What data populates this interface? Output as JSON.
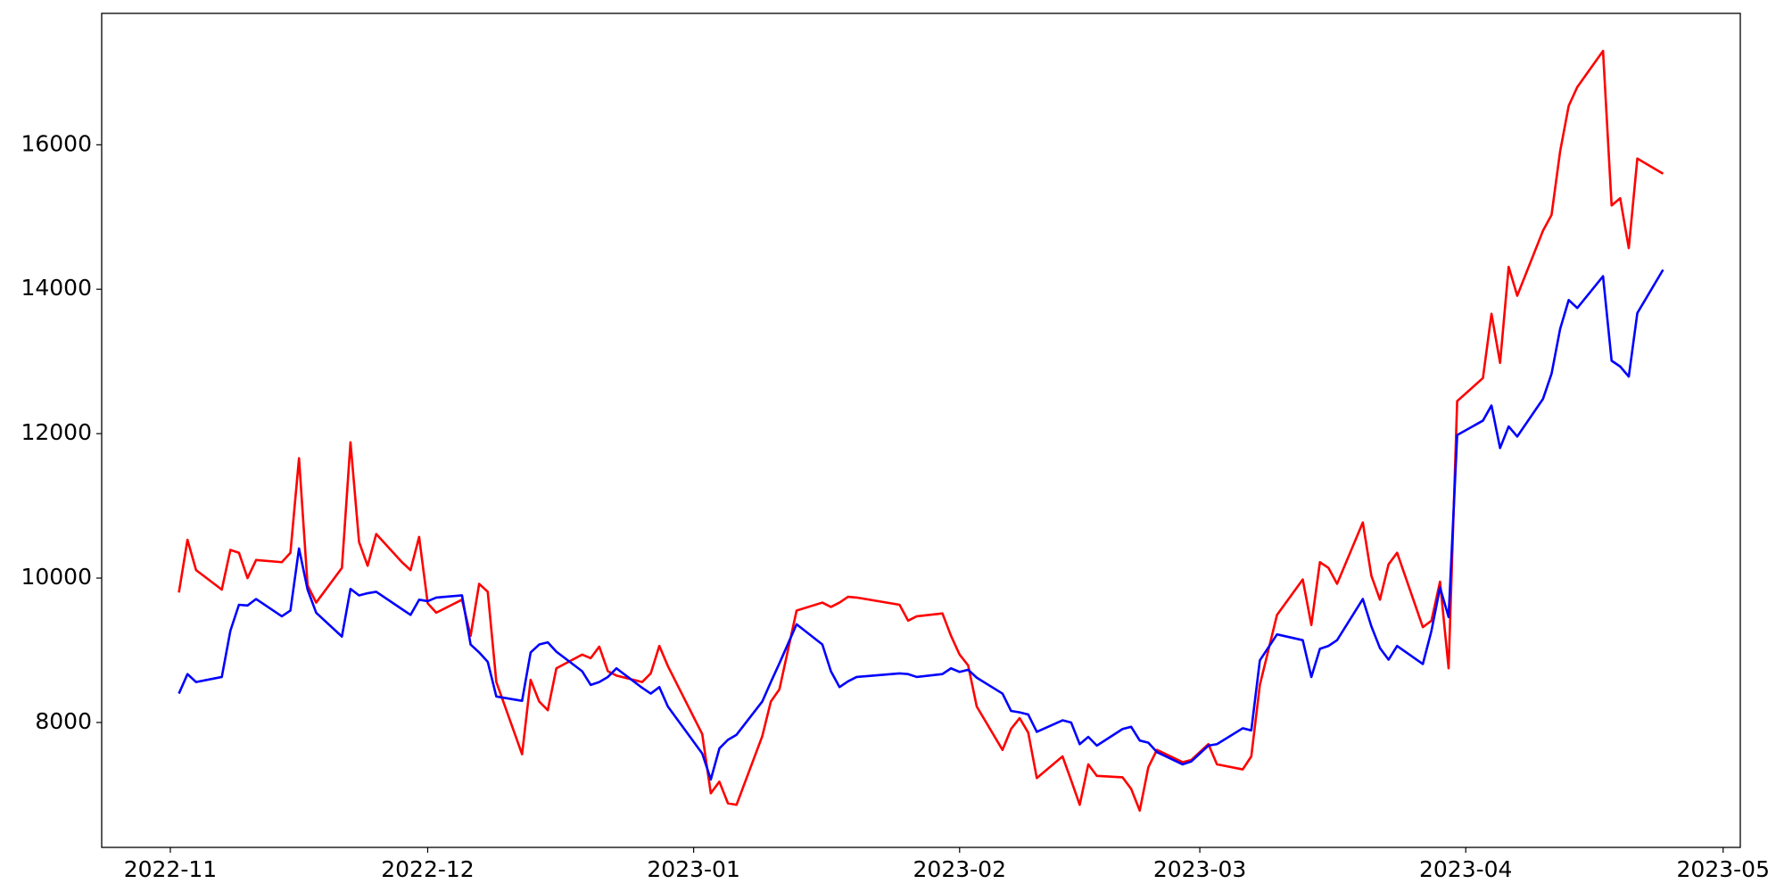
{
  "chart_data": {
    "type": "line",
    "x": [
      "2022-11-02",
      "2022-11-03",
      "2022-11-04",
      "2022-11-07",
      "2022-11-08",
      "2022-11-09",
      "2022-11-10",
      "2022-11-11",
      "2022-11-14",
      "2022-11-15",
      "2022-11-16",
      "2022-11-17",
      "2022-11-18",
      "2022-11-21",
      "2022-11-22",
      "2022-11-23",
      "2022-11-24",
      "2022-11-25",
      "2022-11-28",
      "2022-11-29",
      "2022-11-30",
      "2022-12-01",
      "2022-12-02",
      "2022-12-05",
      "2022-12-06",
      "2022-12-07",
      "2022-12-08",
      "2022-12-09",
      "2022-12-12",
      "2022-12-13",
      "2022-12-14",
      "2022-12-15",
      "2022-12-16",
      "2022-12-19",
      "2022-12-20",
      "2022-12-21",
      "2022-12-22",
      "2022-12-23",
      "2022-12-26",
      "2022-12-27",
      "2022-12-28",
      "2022-12-29",
      "2023-01-02",
      "2023-01-03",
      "2023-01-04",
      "2023-01-05",
      "2023-01-06",
      "2023-01-09",
      "2023-01-10",
      "2023-01-11",
      "2023-01-13",
      "2023-01-16",
      "2023-01-17",
      "2023-01-18",
      "2023-01-19",
      "2023-01-20",
      "2023-01-25",
      "2023-01-26",
      "2023-01-27",
      "2023-01-30",
      "2023-01-31",
      "2023-02-01",
      "2023-02-02",
      "2023-02-03",
      "2023-02-06",
      "2023-02-07",
      "2023-02-08",
      "2023-02-09",
      "2023-02-10",
      "2023-02-13",
      "2023-02-14",
      "2023-02-15",
      "2023-02-16",
      "2023-02-17",
      "2023-02-20",
      "2023-02-21",
      "2023-02-22",
      "2023-02-23",
      "2023-02-24",
      "2023-02-27",
      "2023-02-28",
      "2023-03-02",
      "2023-03-03",
      "2023-03-06",
      "2023-03-07",
      "2023-03-08",
      "2023-03-10",
      "2023-03-13",
      "2023-03-14",
      "2023-03-15",
      "2023-03-16",
      "2023-03-17",
      "2023-03-20",
      "2023-03-21",
      "2023-03-22",
      "2023-03-23",
      "2023-03-24",
      "2023-03-27",
      "2023-03-28",
      "2023-03-29",
      "2023-03-30",
      "2023-03-31",
      "2023-04-03",
      "2023-04-04",
      "2023-04-05",
      "2023-04-06",
      "2023-04-07",
      "2023-04-10",
      "2023-04-11",
      "2023-04-12",
      "2023-04-13",
      "2023-04-14",
      "2023-04-17",
      "2023-04-18",
      "2023-04-19",
      "2023-04-20",
      "2023-04-21",
      "2023-04-24"
    ],
    "series": [
      {
        "color": "#ff0000",
        "values": [
          9800,
          10530,
          10110,
          9840,
          10390,
          10350,
          10000,
          10250,
          10220,
          10350,
          11660,
          9900,
          9660,
          10140,
          11880,
          10500,
          10170,
          10610,
          10220,
          10110,
          10570,
          9650,
          9520,
          9700,
          9200,
          9920,
          9810,
          8560,
          7560,
          8590,
          8290,
          8170,
          8750,
          8940,
          8890,
          9050,
          8710,
          8650,
          8560,
          8680,
          9060,
          8780,
          7840,
          7020,
          7180,
          6880,
          6860,
          7810,
          8290,
          8460,
          9550,
          9660,
          9600,
          9660,
          9740,
          9730,
          9630,
          9410,
          9470,
          9510,
          9200,
          8940,
          8790,
          8220,
          7620,
          7910,
          8060,
          7860,
          7230,
          7530,
          7200,
          6860,
          7420,
          7260,
          7240,
          7080,
          6780,
          7380,
          7620,
          7450,
          7480,
          7700,
          7420,
          7350,
          7530,
          8520,
          9490,
          9980,
          9350,
          10220,
          10140,
          9920,
          10770,
          10030,
          9700,
          10190,
          10350,
          9320,
          9410,
          9950,
          8750,
          12450,
          12770,
          13660,
          12980,
          14310,
          13910,
          14810,
          15030,
          15910,
          16540,
          16800,
          17300,
          15160,
          15260,
          14570,
          15810,
          15600
        ]
      },
      {
        "color": "#0000ff",
        "values": [
          8400,
          8670,
          8560,
          8630,
          9270,
          9630,
          9620,
          9710,
          9470,
          9550,
          10410,
          9840,
          9520,
          9190,
          9850,
          9760,
          9790,
          9810,
          9570,
          9490,
          9700,
          9680,
          9730,
          9760,
          9080,
          8970,
          8840,
          8360,
          8300,
          8970,
          9080,
          9110,
          8980,
          8710,
          8520,
          8560,
          8630,
          8750,
          8480,
          8400,
          8490,
          8220,
          7570,
          7210,
          7640,
          7760,
          7830,
          8290,
          8560,
          8820,
          9360,
          9080,
          8710,
          8490,
          8570,
          8630,
          8680,
          8670,
          8630,
          8670,
          8750,
          8700,
          8730,
          8620,
          8400,
          8160,
          8140,
          8110,
          7870,
          8030,
          8000,
          7700,
          7800,
          7680,
          7910,
          7940,
          7750,
          7720,
          7590,
          7420,
          7460,
          7680,
          7700,
          7920,
          7890,
          8860,
          9220,
          9140,
          8630,
          9020,
          9060,
          9140,
          9710,
          9330,
          9030,
          8870,
          9060,
          8810,
          9270,
          9870,
          9460,
          11980,
          12180,
          12390,
          11800,
          12100,
          11960,
          12480,
          12830,
          13450,
          13850,
          13740,
          14180,
          13010,
          12930,
          12790,
          13670,
          14270
        ]
      }
    ],
    "xlim": [
      "2022-10-24",
      "2023-05-03"
    ],
    "xticks": [
      {
        "value": "2022-11-01",
        "label": "2022-11"
      },
      {
        "value": "2022-12-01",
        "label": "2022-12"
      },
      {
        "value": "2023-01-01",
        "label": "2023-01"
      },
      {
        "value": "2023-02-01",
        "label": "2023-02"
      },
      {
        "value": "2023-03-01",
        "label": "2023-03"
      },
      {
        "value": "2023-04-01",
        "label": "2023-04"
      },
      {
        "value": "2023-05-01",
        "label": "2023-05"
      }
    ],
    "ylim": [
      6270,
      17820
    ],
    "yticks": [
      8000,
      10000,
      12000,
      14000,
      16000
    ],
    "grid": false
  }
}
